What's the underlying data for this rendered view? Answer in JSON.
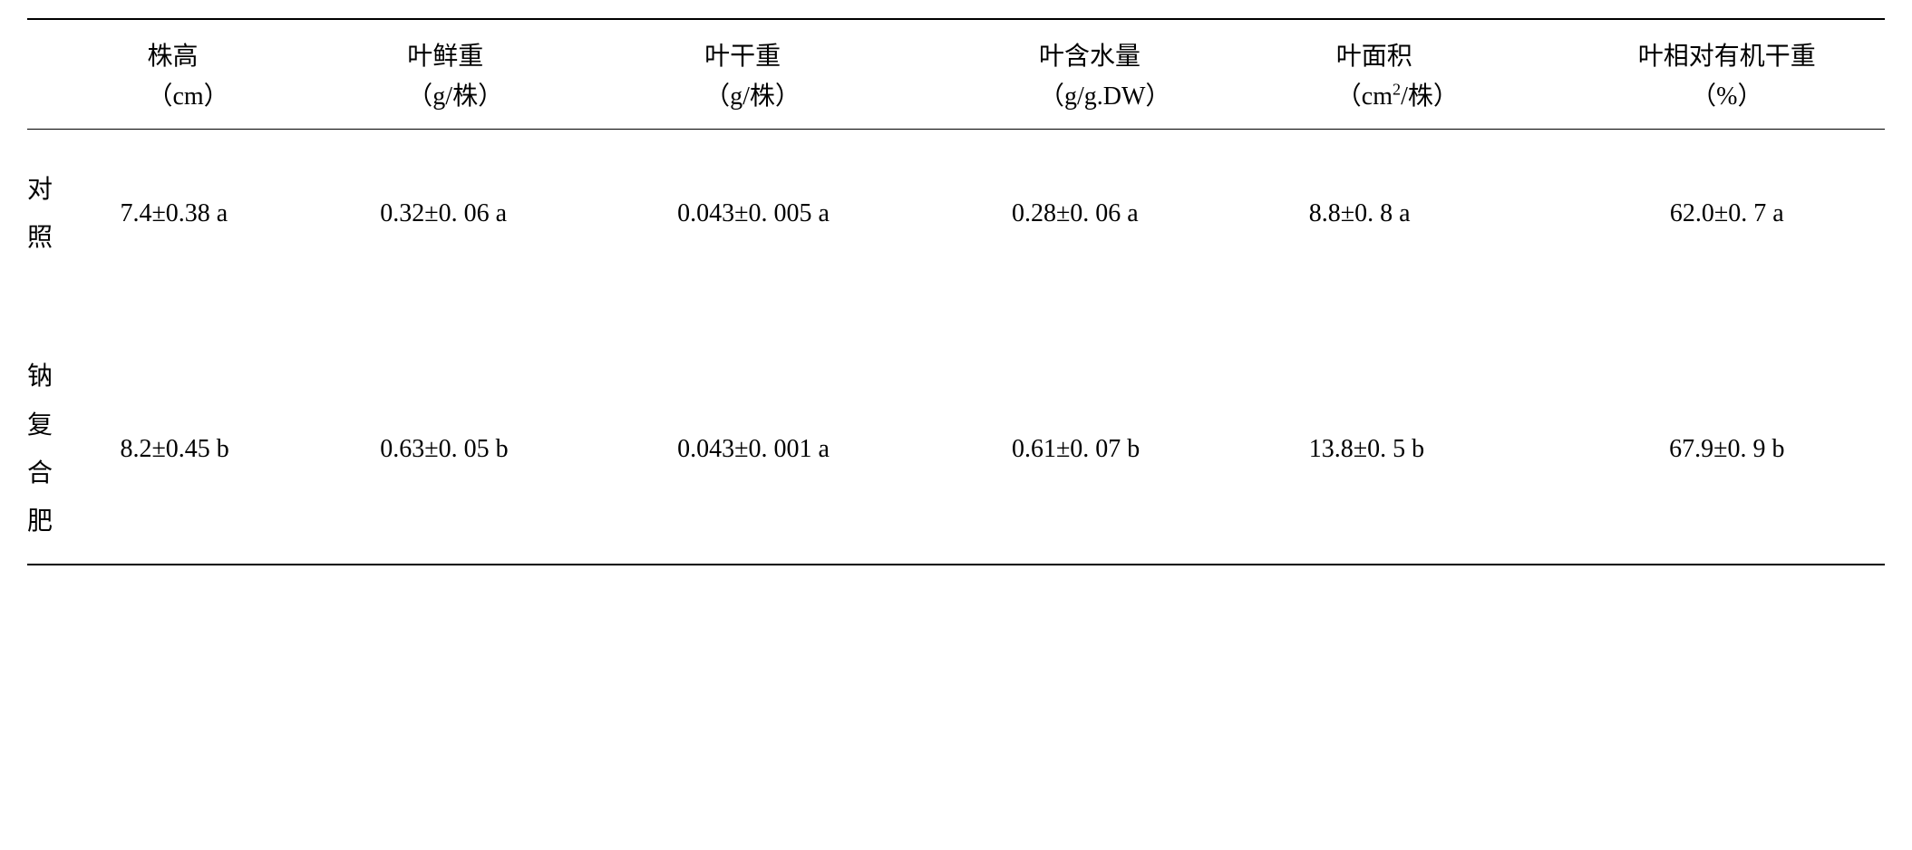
{
  "table": {
    "headers": [
      {
        "label": "株高",
        "unit": "（cm）"
      },
      {
        "label": "叶鲜重",
        "unit": "（g/株）"
      },
      {
        "label": "叶干重",
        "unit": "（g/株）"
      },
      {
        "label": "叶含水量",
        "unit": "（g/g.DW）"
      },
      {
        "label": "叶面积",
        "unit_pre": "（cm",
        "unit_sup": "2",
        "unit_post": "/株）"
      },
      {
        "label": "叶相对有机干重",
        "unit": "（%）"
      }
    ],
    "rows": [
      {
        "label": "对照",
        "values": [
          "7.4±0.38 a",
          "0.32±0. 06 a",
          "0.043±0. 005 a",
          "0.28±0. 06 a",
          "8.8±0. 8  a",
          "62.0±0. 7  a"
        ]
      },
      {
        "label": "钠复合肥",
        "values": [
          "8.2±0.45 b",
          "0.63±0. 05 b",
          "0.043±0. 001 a",
          "0.61±0. 07 b",
          "13.8±0. 5 b",
          "67.9±0. 9  b"
        ]
      }
    ]
  },
  "style": {
    "background_color": "#ffffff",
    "text_color": "#000000",
    "rule_color": "#000000",
    "font_size_pt": 21,
    "font_family": "SimSun"
  }
}
